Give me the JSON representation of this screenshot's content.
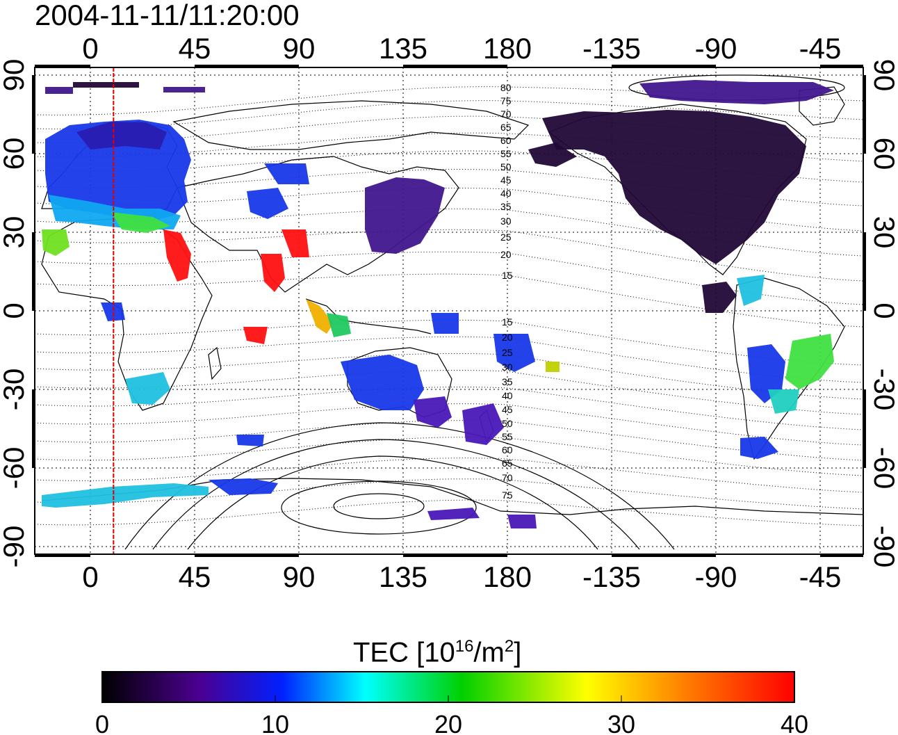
{
  "title": "2004-11-11/11:20:00",
  "map": {
    "lon_ticks": [
      "0",
      "45",
      "90",
      "135",
      "180",
      "-135",
      "-90",
      "-45"
    ],
    "lat_ticks": [
      "90",
      "60",
      "30",
      "0",
      "-30",
      "-60",
      "-90"
    ],
    "meridian_marker_lon": 10,
    "meridian_marker_color": "#e00000",
    "contour_labels": [
      "80",
      "75",
      "70",
      "65",
      "60",
      "55",
      "50",
      "45",
      "40",
      "35",
      "30",
      "25",
      "20",
      "15",
      "15",
      "20",
      "25",
      "30",
      "35",
      "40",
      "45",
      "50",
      "55",
      "60",
      "65",
      "70",
      "75"
    ]
  },
  "colorbar": {
    "title_prefix": "TEC  [10",
    "title_exp1": "16",
    "title_mid": "/m",
    "title_exp2": "2",
    "title_suffix": "]",
    "ticks": [
      "0",
      "10",
      "20",
      "30",
      "40"
    ],
    "range": [
      0,
      40
    ],
    "colors": [
      "#000000",
      "#4b0090",
      "#0020ff",
      "#00ffff",
      "#00d000",
      "#ffff00",
      "#ff8000",
      "#ff0000"
    ]
  }
}
